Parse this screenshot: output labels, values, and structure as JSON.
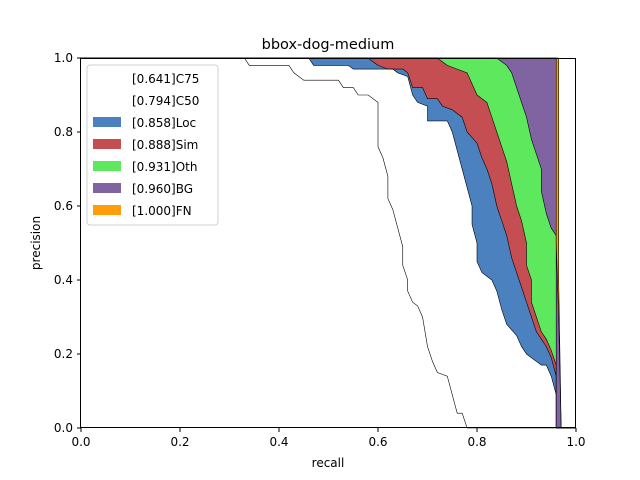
{
  "chart_data": {
    "type": "area",
    "title": "bbox-dog-medium",
    "xlabel": "recall",
    "ylabel": "precision",
    "xlim": [
      0,
      1
    ],
    "ylim": [
      0,
      1
    ],
    "xticks": [
      "0.0",
      "0.2",
      "0.4",
      "0.6",
      "0.8",
      "1.0"
    ],
    "yticks": [
      "0.0",
      "0.2",
      "0.4",
      "0.6",
      "0.8",
      "1.0"
    ],
    "grid": false,
    "legend_position": "top-left",
    "series": [
      {
        "name": "[0.641]C75",
        "color": "#ffffff",
        "points": [
          [
            0,
            1
          ],
          [
            0.33,
            1
          ],
          [
            0.34,
            0.98
          ],
          [
            0.42,
            0.98
          ],
          [
            0.43,
            0.96
          ],
          [
            0.45,
            0.94
          ],
          [
            0.52,
            0.94
          ],
          [
            0.53,
            0.92
          ],
          [
            0.55,
            0.92
          ],
          [
            0.56,
            0.9
          ],
          [
            0.58,
            0.9
          ],
          [
            0.6,
            0.88
          ],
          [
            0.6,
            0.76
          ],
          [
            0.61,
            0.73
          ],
          [
            0.62,
            0.68
          ],
          [
            0.62,
            0.62
          ],
          [
            0.63,
            0.59
          ],
          [
            0.64,
            0.54
          ],
          [
            0.65,
            0.49
          ],
          [
            0.65,
            0.44
          ],
          [
            0.66,
            0.4
          ],
          [
            0.66,
            0.37
          ],
          [
            0.67,
            0.34
          ],
          [
            0.68,
            0.33
          ],
          [
            0.69,
            0.3
          ],
          [
            0.7,
            0.22
          ],
          [
            0.71,
            0.18
          ],
          [
            0.72,
            0.15
          ],
          [
            0.74,
            0.14
          ],
          [
            0.75,
            0.09
          ],
          [
            0.76,
            0.04
          ],
          [
            0.77,
            0.04
          ],
          [
            0.78,
            0
          ],
          [
            1,
            0
          ]
        ]
      },
      {
        "name": "[0.794]C50",
        "color": "#ffffff",
        "points": [
          [
            0,
            1
          ],
          [
            0.46,
            1
          ],
          [
            0.47,
            0.98
          ],
          [
            0.54,
            0.98
          ],
          [
            0.55,
            0.97
          ],
          [
            0.63,
            0.97
          ],
          [
            0.64,
            0.96
          ],
          [
            0.66,
            0.95
          ],
          [
            0.67,
            0.9
          ],
          [
            0.68,
            0.88
          ],
          [
            0.7,
            0.87
          ],
          [
            0.7,
            0.83
          ],
          [
            0.74,
            0.83
          ],
          [
            0.75,
            0.8
          ],
          [
            0.76,
            0.75
          ],
          [
            0.77,
            0.7
          ],
          [
            0.78,
            0.65
          ],
          [
            0.79,
            0.6
          ],
          [
            0.79,
            0.55
          ],
          [
            0.8,
            0.5
          ],
          [
            0.8,
            0.45
          ],
          [
            0.81,
            0.42
          ],
          [
            0.83,
            0.4
          ],
          [
            0.84,
            0.37
          ],
          [
            0.85,
            0.32
          ],
          [
            0.86,
            0.28
          ],
          [
            0.88,
            0.25
          ],
          [
            0.89,
            0.22
          ],
          [
            0.9,
            0.2
          ],
          [
            0.91,
            0.19
          ],
          [
            0.93,
            0.17
          ],
          [
            0.94,
            0.17
          ],
          [
            0.95,
            0.14
          ],
          [
            0.96,
            0.09
          ],
          [
            0.96,
            0
          ],
          [
            1,
            0
          ]
        ]
      },
      {
        "name": "[0.858]Loc",
        "color": "#4c81bf",
        "points": [
          [
            0,
            1
          ],
          [
            0.58,
            1
          ],
          [
            0.59,
            0.99
          ],
          [
            0.6,
            0.98
          ],
          [
            0.62,
            0.97
          ],
          [
            0.65,
            0.97
          ],
          [
            0.66,
            0.96
          ],
          [
            0.67,
            0.92
          ],
          [
            0.69,
            0.92
          ],
          [
            0.7,
            0.89
          ],
          [
            0.72,
            0.89
          ],
          [
            0.73,
            0.87
          ],
          [
            0.75,
            0.86
          ],
          [
            0.77,
            0.84
          ],
          [
            0.78,
            0.8
          ],
          [
            0.8,
            0.77
          ],
          [
            0.81,
            0.73
          ],
          [
            0.82,
            0.7
          ],
          [
            0.83,
            0.66
          ],
          [
            0.84,
            0.6
          ],
          [
            0.85,
            0.56
          ],
          [
            0.86,
            0.52
          ],
          [
            0.87,
            0.46
          ],
          [
            0.88,
            0.42
          ],
          [
            0.89,
            0.38
          ],
          [
            0.9,
            0.34
          ],
          [
            0.91,
            0.3
          ],
          [
            0.92,
            0.26
          ],
          [
            0.93,
            0.24
          ],
          [
            0.94,
            0.22
          ],
          [
            0.95,
            0.19
          ],
          [
            0.96,
            0.14
          ],
          [
            0.96,
            0
          ],
          [
            1,
            0
          ]
        ]
      },
      {
        "name": "[0.888]Sim",
        "color": "#c44e52",
        "points": [
          [
            0,
            1
          ],
          [
            0.72,
            1
          ],
          [
            0.73,
            0.99
          ],
          [
            0.74,
            0.98
          ],
          [
            0.76,
            0.97
          ],
          [
            0.78,
            0.96
          ],
          [
            0.79,
            0.93
          ],
          [
            0.8,
            0.9
          ],
          [
            0.82,
            0.88
          ],
          [
            0.83,
            0.84
          ],
          [
            0.84,
            0.8
          ],
          [
            0.85,
            0.76
          ],
          [
            0.86,
            0.72
          ],
          [
            0.87,
            0.66
          ],
          [
            0.88,
            0.6
          ],
          [
            0.89,
            0.56
          ],
          [
            0.9,
            0.5
          ],
          [
            0.9,
            0.44
          ],
          [
            0.91,
            0.4
          ],
          [
            0.91,
            0.34
          ],
          [
            0.92,
            0.3
          ],
          [
            0.93,
            0.26
          ],
          [
            0.94,
            0.24
          ],
          [
            0.95,
            0.21
          ],
          [
            0.96,
            0.17
          ],
          [
            0.96,
            0
          ],
          [
            1,
            0
          ]
        ]
      },
      {
        "name": "[0.931]Oth",
        "color": "#5ee85e",
        "points": [
          [
            0,
            1
          ],
          [
            0.84,
            1
          ],
          [
            0.85,
            0.99
          ],
          [
            0.86,
            0.98
          ],
          [
            0.87,
            0.96
          ],
          [
            0.88,
            0.92
          ],
          [
            0.89,
            0.88
          ],
          [
            0.9,
            0.84
          ],
          [
            0.91,
            0.78
          ],
          [
            0.92,
            0.74
          ],
          [
            0.93,
            0.7
          ],
          [
            0.93,
            0.64
          ],
          [
            0.94,
            0.58
          ],
          [
            0.95,
            0.54
          ],
          [
            0.96,
            0.52
          ],
          [
            0.96,
            0
          ],
          [
            1,
            0
          ]
        ]
      },
      {
        "name": "[0.960]BG",
        "color": "#8064a2",
        "points": [
          [
            0,
            1
          ],
          [
            0.96,
            1
          ],
          [
            0.96,
            0.5
          ],
          [
            0.965,
            0.3
          ],
          [
            0.97,
            0
          ],
          [
            1,
            0
          ]
        ]
      },
      {
        "name": "[1.000]FN",
        "color": "#ff9d0b",
        "points": [
          [
            0,
            1
          ],
          [
            0.965,
            1
          ],
          [
            0.965,
            0.4
          ],
          [
            0.97,
            0
          ],
          [
            1,
            0
          ]
        ]
      }
    ]
  }
}
